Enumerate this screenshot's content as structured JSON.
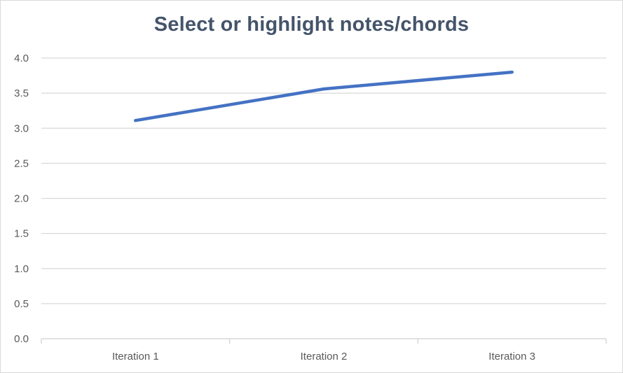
{
  "chart_data": {
    "type": "line",
    "title": "Select or highlight notes/chords",
    "xlabel": "",
    "ylabel": "",
    "categories": [
      "Iteration 1",
      "Iteration 2",
      "Iteration 3"
    ],
    "series": [
      {
        "values": [
          3.11,
          3.56,
          3.8
        ],
        "color": "#4472c4"
      }
    ],
    "ylim": [
      0,
      4.0
    ],
    "yticks": [
      "0.0",
      "0.5",
      "1.0",
      "1.5",
      "2.0",
      "2.5",
      "3.0",
      "3.5",
      "4.0"
    ],
    "grid": true,
    "legend": "none",
    "colors": {
      "gridline": "#d9d9d9",
      "axis": "#d9d9d9",
      "title": "#44546a",
      "tick_text": "#595959"
    }
  }
}
